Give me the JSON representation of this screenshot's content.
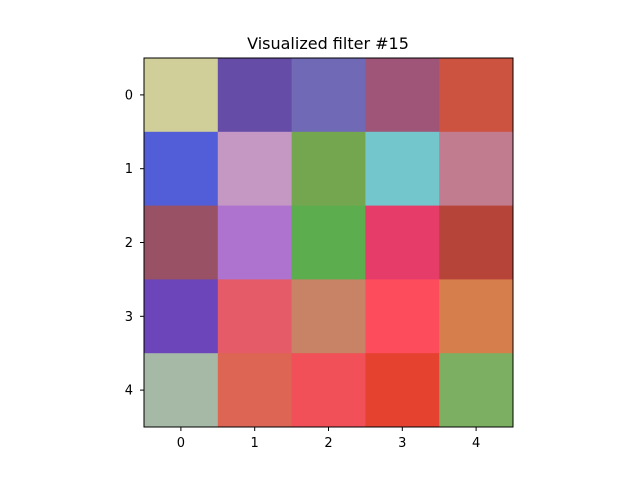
{
  "chart_data": {
    "type": "heatmap",
    "title": "Visualized filter #15",
    "x_ticks": [
      "0",
      "1",
      "2",
      "3",
      "4"
    ],
    "y_ticks": [
      "0",
      "1",
      "2",
      "3",
      "4"
    ],
    "xlabel": "",
    "ylabel": "",
    "grid": false,
    "cells": [
      [
        "#d0cf99",
        "#644ca7",
        "#7069b6",
        "#9e5577",
        "#cd5341"
      ],
      [
        "#525ed8",
        "#c598c4",
        "#73a64f",
        "#73c6cb",
        "#c27c8f"
      ],
      [
        "#995165",
        "#ad73cf",
        "#5cad4d",
        "#e63c6a",
        "#b74438"
      ],
      [
        "#6b45b9",
        "#e55b67",
        "#c88266",
        "#fd4d5d",
        "#d77e4d"
      ],
      [
        "#a5b9a6",
        "#dd6553",
        "#f15058",
        "#e64230",
        "#7caf61"
      ]
    ]
  }
}
